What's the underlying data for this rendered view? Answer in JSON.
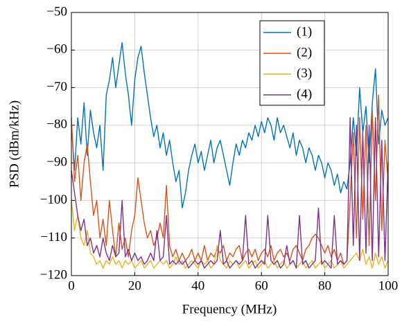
{
  "chart_data": {
    "type": "line",
    "xlabel": "Frequency (MHz)",
    "ylabel": "PSD (dBm/kHz)",
    "xlim": [
      0,
      100
    ],
    "xticks": [
      0,
      20,
      40,
      60,
      80,
      100
    ],
    "ylim": [
      -120,
      -50
    ],
    "yticks": [
      {
        "value": -120,
        "label": "−120"
      },
      {
        "value": -110,
        "label": "−110"
      },
      {
        "value": -100,
        "label": "−100"
      },
      {
        "value": -90,
        "label": "−90"
      },
      {
        "value": -80,
        "label": "−80"
      },
      {
        "value": -70,
        "label": "−70"
      },
      {
        "value": -60,
        "label": "−60"
      },
      {
        "value": -50,
        "label": "−50"
      }
    ],
    "grid": true,
    "legend_position": "upper right",
    "x": [
      0,
      1,
      2,
      3,
      4,
      5,
      6,
      7,
      8,
      9,
      10,
      11,
      12,
      13,
      14,
      15,
      16,
      17,
      18,
      19,
      20,
      21,
      22,
      23,
      24,
      25,
      26,
      27,
      28,
      29,
      30,
      31,
      32,
      33,
      34,
      35,
      36,
      37,
      38,
      39,
      40,
      41,
      42,
      43,
      44,
      45,
      46,
      47,
      48,
      49,
      50,
      51,
      52,
      53,
      54,
      55,
      56,
      57,
      58,
      59,
      60,
      61,
      62,
      63,
      64,
      65,
      66,
      67,
      68,
      69,
      70,
      71,
      72,
      73,
      74,
      75,
      76,
      77,
      78,
      79,
      80,
      81,
      82,
      83,
      84,
      85,
      86,
      87,
      88,
      89,
      90,
      91,
      92,
      93,
      94,
      95,
      96,
      97,
      98,
      99,
      100
    ],
    "series": [
      {
        "name": "(1)",
        "color": "#0072bd",
        "values": [
          -80,
          -92,
          -78,
          -85,
          -74,
          -88,
          -76,
          -82,
          -86,
          -80,
          -92,
          -72,
          -68,
          -62,
          -70,
          -64,
          -58,
          -66,
          -72,
          -80,
          -68,
          -62,
          -59,
          -66,
          -72,
          -78,
          -83,
          -80,
          -86,
          -82,
          -88,
          -84,
          -90,
          -95,
          -92,
          -102,
          -98,
          -92,
          -88,
          -85,
          -90,
          -87,
          -92,
          -88,
          -84,
          -90,
          -86,
          -84,
          -88,
          -92,
          -96,
          -90,
          -85,
          -88,
          -84,
          -86,
          -82,
          -84,
          -80,
          -83,
          -79,
          -82,
          -78,
          -80,
          -84,
          -78,
          -82,
          -80,
          -83,
          -86,
          -82,
          -88,
          -84,
          -86,
          -90,
          -86,
          -88,
          -92,
          -88,
          -90,
          -94,
          -90,
          -92,
          -96,
          -93,
          -98,
          -95,
          -97,
          -90,
          -78,
          -88,
          -70,
          -82,
          -75,
          -90,
          -74,
          -65,
          -85,
          -76,
          -80,
          -78
        ]
      },
      {
        "name": "(2)",
        "color": "#d95319",
        "values": [
          -78,
          -95,
          -88,
          -100,
          -90,
          -85,
          -95,
          -104,
          -100,
          -110,
          -105,
          -112,
          -100,
          -108,
          -115,
          -106,
          -113,
          -110,
          -115,
          -108,
          -104,
          -94,
          -100,
          -106,
          -110,
          -108,
          -112,
          -110,
          -106,
          -110,
          -96,
          -112,
          -115,
          -113,
          -116,
          -114,
          -116,
          -115,
          -113,
          -116,
          -114,
          -116,
          -112,
          -116,
          -114,
          -115,
          -113,
          -114,
          -112,
          -116,
          -114,
          -115,
          -113,
          -112,
          -116,
          -114,
          -113,
          -115,
          -113,
          -116,
          -114,
          -113,
          -115,
          -112,
          -116,
          -114,
          -113,
          -115,
          -114,
          -116,
          -113,
          -112,
          -114,
          -116,
          -113,
          -112,
          -110,
          -109,
          -110,
          -112,
          -114,
          -112,
          -115,
          -113,
          -116,
          -114,
          -117,
          -116,
          -100,
          -82,
          -110,
          -78,
          -105,
          -80,
          -112,
          -76,
          -100,
          -72,
          -108,
          -84,
          -95
        ]
      },
      {
        "name": "(3)",
        "color": "#edb120",
        "values": [
          -100,
          -108,
          -104,
          -110,
          -112,
          -108,
          -114,
          -115,
          -117,
          -116,
          -118,
          -116,
          -117,
          -115,
          -117,
          -116,
          -118,
          -116,
          -117,
          -116,
          -118,
          -117,
          -116,
          -118,
          -117,
          -116,
          -118,
          -117,
          -116,
          -117,
          -116,
          -118,
          -117,
          -115,
          -117,
          -116,
          -118,
          -117,
          -116,
          -117,
          -118,
          -116,
          -117,
          -116,
          -118,
          -117,
          -112,
          -116,
          -117,
          -118,
          -116,
          -117,
          -116,
          -118,
          -117,
          -116,
          -118,
          -117,
          -116,
          -118,
          -117,
          -116,
          -118,
          -117,
          -116,
          -118,
          -117,
          -116,
          -118,
          -117,
          -116,
          -118,
          -117,
          -116,
          -118,
          -117,
          -116,
          -118,
          -117,
          -116,
          -118,
          -117,
          -116,
          -118,
          -117,
          -116,
          -118,
          -117,
          -116,
          -115,
          -114,
          -116,
          -113,
          -117,
          -115,
          -118,
          -114,
          -117,
          -115,
          -118,
          -116
        ]
      },
      {
        "name": "(4)",
        "color": "#7e2f8e",
        "values": [
          -92,
          -98,
          -104,
          -108,
          -105,
          -112,
          -110,
          -114,
          -112,
          -115,
          -110,
          -114,
          -116,
          -112,
          -115,
          -114,
          -100,
          -115,
          -113,
          -116,
          -114,
          -116,
          -115,
          -117,
          -116,
          -114,
          -116,
          -108,
          -116,
          -115,
          -104,
          -117,
          -116,
          -117,
          -116,
          -117,
          -116,
          -118,
          -117,
          -116,
          -117,
          -116,
          -118,
          -117,
          -116,
          -117,
          -116,
          -108,
          -117,
          -116,
          -118,
          -117,
          -116,
          -117,
          -116,
          -104,
          -117,
          -116,
          -118,
          -117,
          -116,
          -117,
          -104,
          -116,
          -117,
          -116,
          -118,
          -117,
          -112,
          -117,
          -116,
          -118,
          -104,
          -117,
          -116,
          -118,
          -117,
          -116,
          -102,
          -117,
          -116,
          -117,
          -118,
          -104,
          -117,
          -116,
          -117,
          -116,
          -78,
          -112,
          -80,
          -116,
          -82,
          -114,
          -80,
          -116,
          -78,
          -115,
          -84,
          -116,
          -90
        ]
      }
    ]
  }
}
